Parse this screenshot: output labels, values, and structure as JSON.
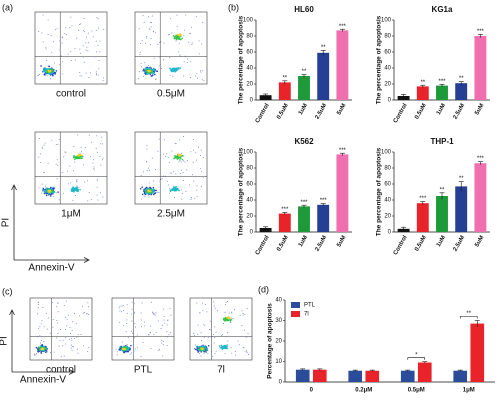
{
  "panel_labels": [
    "(a)",
    "(b)",
    "(c)",
    "(d)"
  ],
  "flow_a": {
    "labels": [
      "control",
      "0.5μM",
      "1μM",
      "2.5μM"
    ],
    "y_axis": "PI",
    "x_axis": "Annexin-V"
  },
  "flow_c": {
    "labels": [
      "control",
      "PTL",
      "7l"
    ],
    "y_axis": "PI",
    "x_axis": "Annexin-V"
  },
  "chart_data": [
    {
      "type": "bar",
      "title": "HL60",
      "ylabel": "The percentage of apoptosis",
      "categories": [
        "Control",
        "0.5uM",
        "1uM",
        "2.5uM",
        "5uM"
      ],
      "colors": [
        "#111111",
        "#e8232a",
        "#1f9a3b",
        "#243f93",
        "#f06fae"
      ],
      "values": [
        6,
        22,
        30,
        59,
        87
      ],
      "errors": [
        1.5,
        2,
        2,
        3,
        1.5
      ],
      "annotations": [
        null,
        "**",
        "**",
        "**",
        "***"
      ],
      "ylim": [
        0,
        100
      ],
      "yticks": [
        0,
        20,
        40,
        60,
        80,
        100
      ]
    },
    {
      "type": "bar",
      "title": "KG1a",
      "ylabel": "The percentage of apoptosis",
      "categories": [
        "Control",
        "0.5uM",
        "1uM",
        "2.5uM",
        "5uM"
      ],
      "colors": [
        "#111111",
        "#e8232a",
        "#1f9a3b",
        "#243f93",
        "#f06fae"
      ],
      "values": [
        5,
        17,
        18,
        21,
        80
      ],
      "errors": [
        2,
        1.5,
        1.5,
        2,
        2
      ],
      "annotations": [
        null,
        "**",
        "***",
        "**",
        "***"
      ],
      "ylim": [
        0,
        100
      ],
      "yticks": [
        0,
        20,
        40,
        60,
        80,
        100
      ]
    },
    {
      "type": "bar",
      "title": "K562",
      "ylabel": "The percentage of apoptosis",
      "categories": [
        "Control",
        "0.5uM",
        "1uM",
        "2.5uM",
        "5uM"
      ],
      "colors": [
        "#111111",
        "#e8232a",
        "#1f9a3b",
        "#243f93",
        "#f06fae"
      ],
      "values": [
        5,
        23,
        32,
        34,
        97
      ],
      "errors": [
        1.5,
        1.5,
        1.5,
        1.5,
        1.5
      ],
      "annotations": [
        null,
        "***",
        "***",
        "***",
        "***"
      ],
      "ylim": [
        0,
        100
      ],
      "yticks": [
        0,
        20,
        40,
        60,
        80,
        100
      ]
    },
    {
      "type": "bar",
      "title": "THP-1",
      "ylabel": "The percentage of apoptosis",
      "categories": [
        "Control",
        "0.5uM",
        "1uM",
        "2.5uM",
        "5uM"
      ],
      "colors": [
        "#111111",
        "#e8232a",
        "#1f9a3b",
        "#243f93",
        "#f06fae"
      ],
      "values": [
        4,
        36,
        45,
        57,
        86
      ],
      "errors": [
        2,
        2,
        4,
        6,
        2
      ],
      "annotations": [
        null,
        "***",
        "**",
        "**",
        "***"
      ],
      "ylim": [
        0,
        100
      ],
      "yticks": [
        0,
        20,
        40,
        60,
        80,
        100
      ]
    },
    {
      "type": "grouped_bar",
      "ylabel": "Percentage of apoptosis",
      "categories": [
        "0",
        "0.2μM",
        "0.5μM",
        "1μM"
      ],
      "series": [
        {
          "name": "PTL",
          "color": "#2b4c9b",
          "values": [
            6,
            5.5,
            5.5,
            5.5
          ],
          "errors": [
            0.4,
            0.3,
            0.3,
            0.3
          ]
        },
        {
          "name": "7l",
          "color": "#e8232a",
          "values": [
            6,
            5.5,
            9.5,
            28.5
          ],
          "errors": [
            0.4,
            0.3,
            0.4,
            1.5
          ]
        }
      ],
      "annotations": [
        {
          "category": "0.5μM",
          "label": "*"
        },
        {
          "category": "1μM",
          "label": "**"
        }
      ],
      "legend": "upper left",
      "ylim": [
        0,
        40
      ],
      "yticks": [
        0,
        10,
        20,
        30,
        40
      ]
    }
  ]
}
